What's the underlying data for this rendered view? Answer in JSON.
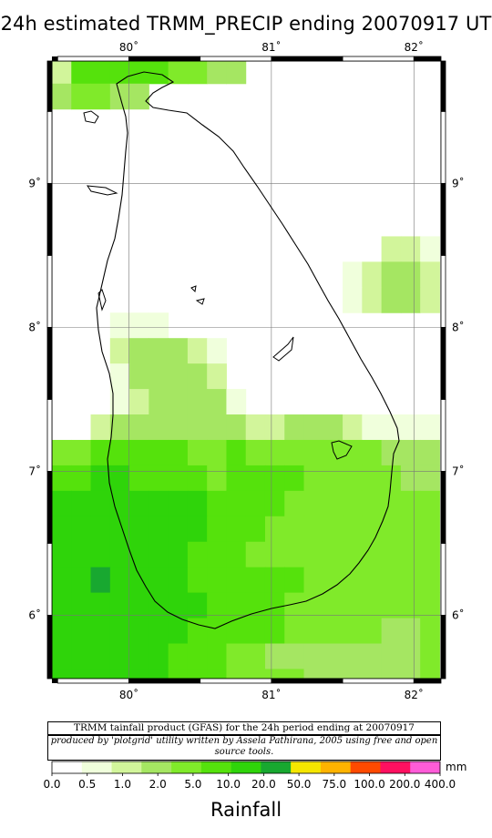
{
  "title": "24h estimated TRMM_PRECIP  ending 20070917 UT",
  "map": {
    "lon_ticks": [
      {
        "v": 80,
        "label": "80˚"
      },
      {
        "v": 81,
        "label": "81˚"
      },
      {
        "v": 82,
        "label": "82˚"
      }
    ],
    "lat_ticks": [
      {
        "v": 9,
        "label": "9˚"
      },
      {
        "v": 8,
        "label": "8˚"
      },
      {
        "v": 7,
        "label": "7˚"
      },
      {
        "v": 6,
        "label": "6˚"
      }
    ],
    "cells_note": "Rainfall category index per 0.25-degree cell (row-major, north to south), -1 = no rain",
    "colors": {
      "water": "#ffffff",
      "coast": "#000000"
    }
  },
  "captions": {
    "line1": "TRMM tainfall product (GFAS) for the 24h period ending at 20070917",
    "line2": "produced by 'plotgrid' utility written by Assela Pathirana, 2005 using free and open source tools."
  },
  "legend": {
    "unit": "mm",
    "labels": [
      "0.0",
      "0.5",
      "1.0",
      "2.0",
      "5.0",
      "10.0",
      "20.0",
      "50.0",
      "75.0",
      "100.0",
      "200.0",
      "400.0"
    ],
    "colors": [
      "#ffffff",
      "#f0ffdc",
      "#d2f59b",
      "#a5e662",
      "#80ea2a",
      "#55e20c",
      "#2fd40a",
      "#18a830",
      "#f5e600",
      "#ffb300",
      "#ff4a00",
      "#ff1060",
      "#ff5cd8"
    ],
    "title": "Rainfall"
  }
}
